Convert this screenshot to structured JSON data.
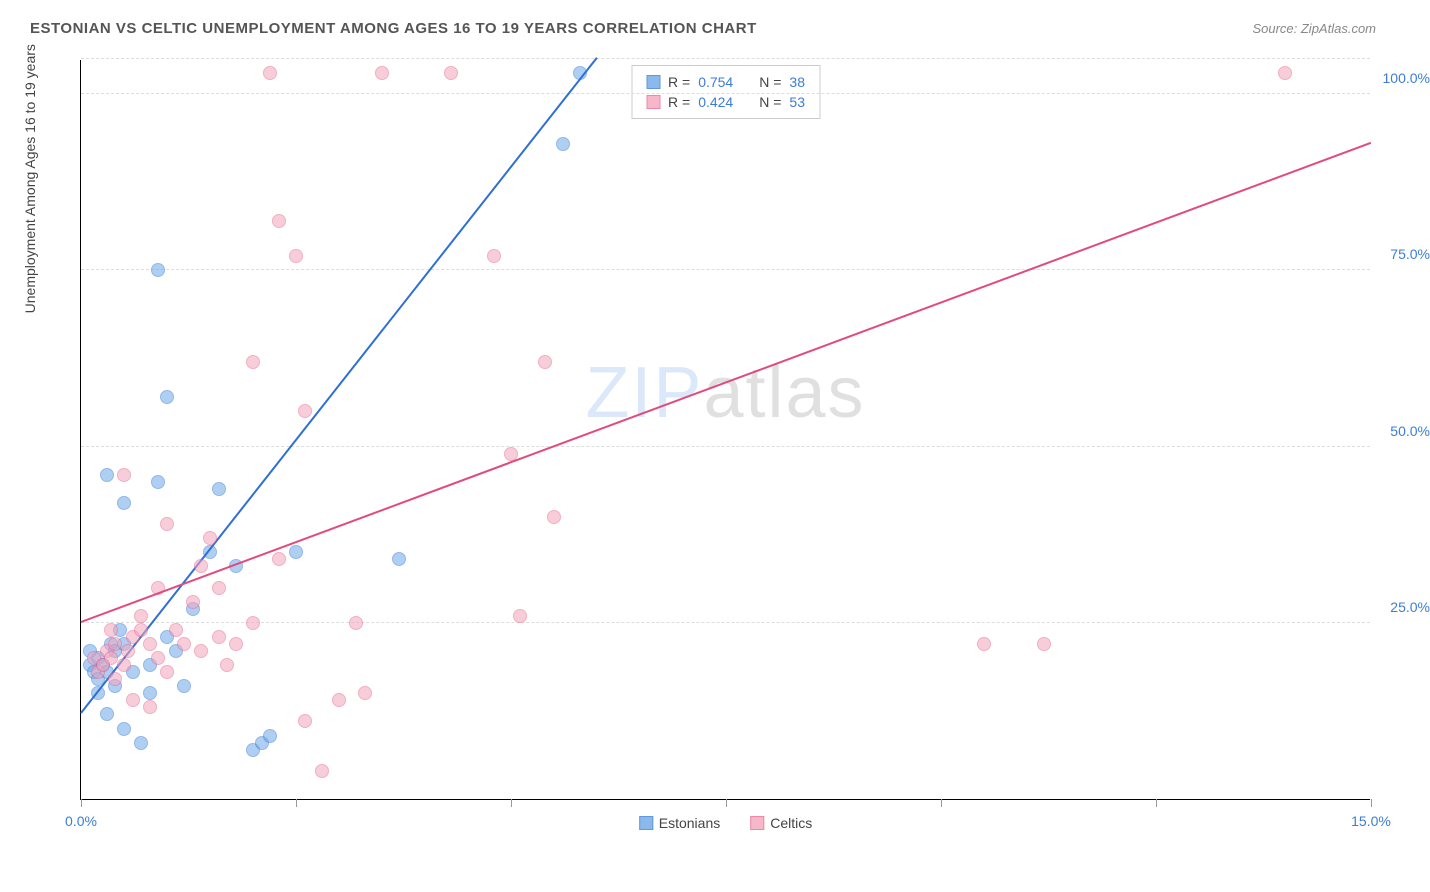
{
  "title": "ESTONIAN VS CELTIC UNEMPLOYMENT AMONG AGES 16 TO 19 YEARS CORRELATION CHART",
  "source": "Source: ZipAtlas.com",
  "y_axis_title": "Unemployment Among Ages 16 to 19 years",
  "watermark_zip": "ZIP",
  "watermark_atlas": "atlas",
  "chart": {
    "type": "scatter",
    "xlim": [
      0,
      15
    ],
    "ylim": [
      0,
      105
    ],
    "x_ticks": [
      0,
      2.5,
      5,
      7.5,
      10,
      12.5,
      15
    ],
    "x_tick_labels": {
      "0": "0.0%",
      "15": "15.0%"
    },
    "y_gridlines": [
      25,
      50,
      75,
      100,
      105
    ],
    "y_tick_labels": {
      "25": "25.0%",
      "50": "50.0%",
      "75": "75.0%",
      "100": "100.0%"
    },
    "background_color": "#ffffff",
    "grid_color": "#dddddd",
    "point_radius": 7,
    "point_opacity": 0.55,
    "series": [
      {
        "name": "Estonians",
        "color": "#6fa8e8",
        "border": "#3b7dd8",
        "line_color": "#2e6fd4",
        "R": "0.754",
        "N": "38",
        "reg_start": [
          0,
          12
        ],
        "reg_end": [
          6,
          105
        ],
        "points": [
          [
            0.1,
            19
          ],
          [
            0.15,
            18
          ],
          [
            0.2,
            20
          ],
          [
            0.2,
            17
          ],
          [
            0.25,
            19
          ],
          [
            0.1,
            21
          ],
          [
            0.3,
            18
          ],
          [
            0.2,
            15
          ],
          [
            0.35,
            22
          ],
          [
            0.4,
            16
          ],
          [
            0.3,
            12
          ],
          [
            0.5,
            10
          ],
          [
            0.7,
            8
          ],
          [
            0.4,
            21
          ],
          [
            0.5,
            22
          ],
          [
            0.6,
            18
          ],
          [
            0.8,
            15
          ],
          [
            1.0,
            23
          ],
          [
            1.1,
            21
          ],
          [
            0.3,
            46
          ],
          [
            0.5,
            42
          ],
          [
            0.9,
            45
          ],
          [
            1.3,
            27
          ],
          [
            1.5,
            35
          ],
          [
            1.8,
            33
          ],
          [
            2.0,
            7
          ],
          [
            2.1,
            8
          ],
          [
            2.2,
            9
          ],
          [
            1.2,
            16
          ],
          [
            1.0,
            57
          ],
          [
            1.6,
            44
          ],
          [
            2.5,
            35
          ],
          [
            3.7,
            34
          ],
          [
            0.9,
            75
          ],
          [
            5.6,
            93
          ],
          [
            5.8,
            103
          ],
          [
            0.8,
            19
          ],
          [
            0.45,
            24
          ]
        ]
      },
      {
        "name": "Celtics",
        "color": "#f4a6bd",
        "border": "#e86b94",
        "line_color": "#e14b7c",
        "R": "0.424",
        "N": "53",
        "reg_start": [
          0,
          25
        ],
        "reg_end": [
          15,
          93
        ],
        "points": [
          [
            0.15,
            20
          ],
          [
            0.2,
            18
          ],
          [
            0.25,
            19
          ],
          [
            0.3,
            21
          ],
          [
            0.4,
            17
          ],
          [
            0.35,
            20
          ],
          [
            0.5,
            19
          ],
          [
            0.6,
            23
          ],
          [
            0.7,
            24
          ],
          [
            0.8,
            22
          ],
          [
            0.9,
            20
          ],
          [
            1.0,
            18
          ],
          [
            1.1,
            24
          ],
          [
            1.2,
            22
          ],
          [
            1.3,
            28
          ],
          [
            0.6,
            14
          ],
          [
            0.8,
            13
          ],
          [
            1.0,
            39
          ],
          [
            1.4,
            33
          ],
          [
            1.6,
            30
          ],
          [
            1.8,
            22
          ],
          [
            2.0,
            25
          ],
          [
            2.3,
            34
          ],
          [
            2.6,
            11
          ],
          [
            2.8,
            4
          ],
          [
            3.0,
            14
          ],
          [
            3.2,
            25
          ],
          [
            3.3,
            15
          ],
          [
            2.0,
            62
          ],
          [
            2.3,
            82
          ],
          [
            2.5,
            77
          ],
          [
            2.6,
            55
          ],
          [
            2.2,
            103
          ],
          [
            3.5,
            103
          ],
          [
            4.3,
            103
          ],
          [
            4.8,
            77
          ],
          [
            5.4,
            62
          ],
          [
            5.1,
            26
          ],
          [
            5.5,
            40
          ],
          [
            5.0,
            49
          ],
          [
            0.5,
            46
          ],
          [
            0.9,
            30
          ],
          [
            1.5,
            37
          ],
          [
            1.7,
            19
          ],
          [
            1.4,
            21
          ],
          [
            1.6,
            23
          ],
          [
            10.5,
            22
          ],
          [
            11.2,
            22
          ],
          [
            14.0,
            103
          ],
          [
            0.4,
            22
          ],
          [
            0.35,
            24
          ],
          [
            0.55,
            21
          ],
          [
            0.7,
            26
          ]
        ]
      }
    ]
  },
  "legend_labels": {
    "R": "R =",
    "N": "N ="
  }
}
